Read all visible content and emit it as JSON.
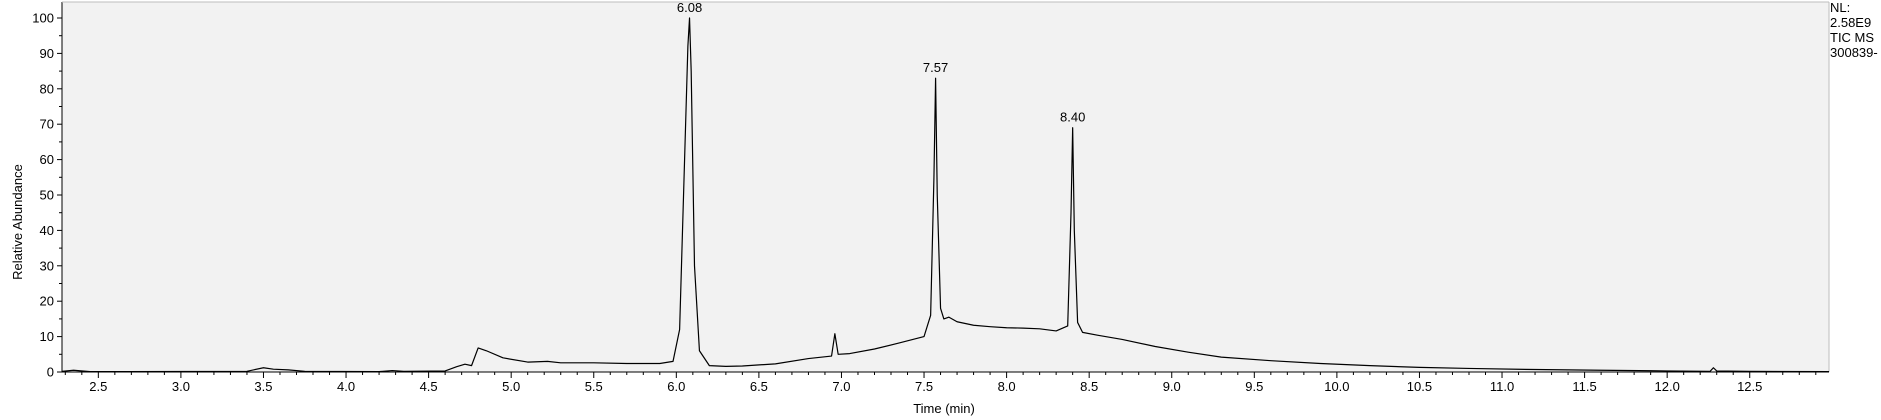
{
  "chart_data": {
    "type": "line",
    "title": "",
    "xlabel": "Time (min)",
    "ylabel": "Relative Abundance",
    "xlim": [
      2.28,
      12.98
    ],
    "ylim": [
      0,
      100
    ],
    "x_ticks": [
      2.5,
      3.0,
      3.5,
      4.0,
      4.5,
      5.0,
      5.5,
      6.0,
      6.5,
      7.0,
      7.5,
      8.0,
      8.5,
      9.0,
      9.5,
      10.0,
      10.5,
      11.0,
      11.5,
      12.0,
      12.5
    ],
    "x_tick_labels": [
      "2.5",
      "3.0",
      "3.5",
      "4.0",
      "4.5",
      "5.0",
      "5.5",
      "6.0",
      "6.5",
      "7.0",
      "7.5",
      "8.0",
      "8.5",
      "9.0",
      "9.5",
      "10.0",
      "10.5",
      "11.0",
      "11.5",
      "12.0",
      "12.5"
    ],
    "y_ticks": [
      0,
      10,
      20,
      30,
      40,
      50,
      60,
      70,
      80,
      90,
      100
    ],
    "y_tick_labels": [
      "0",
      "10",
      "20",
      "30",
      "40",
      "50",
      "60",
      "70",
      "80",
      "90",
      "100"
    ],
    "grid": false,
    "series": [
      {
        "color": "#000000",
        "x": [
          2.28,
          2.35,
          2.45,
          3.4,
          3.5,
          3.56,
          3.65,
          3.75,
          4.2,
          4.28,
          4.35,
          4.6,
          4.67,
          4.72,
          4.76,
          4.8,
          4.85,
          4.95,
          5.1,
          5.22,
          5.3,
          5.5,
          5.7,
          5.9,
          5.98,
          6.02,
          6.05,
          6.07,
          6.08,
          6.09,
          6.11,
          6.14,
          6.2,
          6.3,
          6.4,
          6.6,
          6.8,
          6.94,
          6.96,
          6.98,
          7.05,
          7.2,
          7.35,
          7.5,
          7.54,
          7.56,
          7.57,
          7.58,
          7.6,
          7.62,
          7.65,
          7.7,
          7.8,
          7.9,
          8.0,
          8.1,
          8.2,
          8.3,
          8.37,
          8.39,
          8.4,
          8.41,
          8.43,
          8.46,
          8.55,
          8.7,
          8.9,
          9.1,
          9.3,
          9.6,
          9.9,
          10.2,
          10.5,
          10.8,
          11.2,
          11.6,
          12.0,
          12.26,
          12.28,
          12.3,
          12.5,
          12.98
        ],
        "y": [
          0.2,
          0.5,
          0.1,
          0.2,
          1.2,
          0.8,
          0.6,
          0.2,
          0.1,
          0.4,
          0.2,
          0.3,
          1.5,
          2.2,
          1.8,
          6.8,
          6.0,
          4.0,
          2.8,
          3.0,
          2.6,
          2.6,
          2.4,
          2.4,
          3.0,
          12.0,
          60.0,
          92.0,
          100.0,
          85.0,
          30.0,
          6.0,
          1.8,
          1.6,
          1.7,
          2.3,
          3.8,
          4.5,
          10.8,
          5.0,
          5.2,
          6.5,
          8.2,
          10.0,
          16.0,
          55.0,
          83.0,
          50.0,
          18.0,
          15.0,
          15.5,
          14.2,
          13.2,
          12.8,
          12.5,
          12.4,
          12.2,
          11.6,
          13.0,
          45.0,
          69.0,
          40.0,
          14.0,
          11.2,
          10.4,
          9.2,
          7.2,
          5.6,
          4.2,
          3.2,
          2.4,
          1.8,
          1.3,
          1.0,
          0.7,
          0.5,
          0.3,
          0.2,
          1.2,
          0.3,
          0.2,
          0.1
        ]
      }
    ],
    "peak_labels": [
      {
        "x": 6.08,
        "y": 100,
        "text": "6.08"
      },
      {
        "x": 7.57,
        "y": 83,
        "text": "7.57"
      },
      {
        "x": 8.4,
        "y": 69,
        "text": "8.40"
      }
    ]
  },
  "side_note": {
    "line1": "NL:",
    "line2": "2.58E9",
    "line3": "TIC  MS",
    "line4": "300839-"
  }
}
